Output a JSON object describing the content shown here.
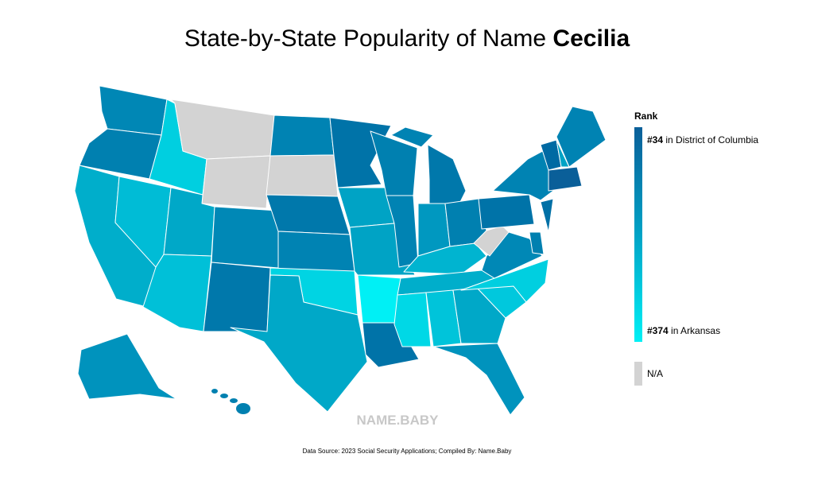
{
  "title": {
    "prefix": "State-by-State Popularity of Name",
    "name": "Cecilia"
  },
  "legend": {
    "title": "Rank",
    "top": {
      "rank": "#34",
      "place": "in District of Columbia"
    },
    "bottom": {
      "rank": "#374",
      "place": "in Arkansas"
    },
    "na": "N/A"
  },
  "watermark": "NAME.BABY",
  "source": "Data Source: 2023 Social Security Applications; Compiled By: Name.Baby"
}
